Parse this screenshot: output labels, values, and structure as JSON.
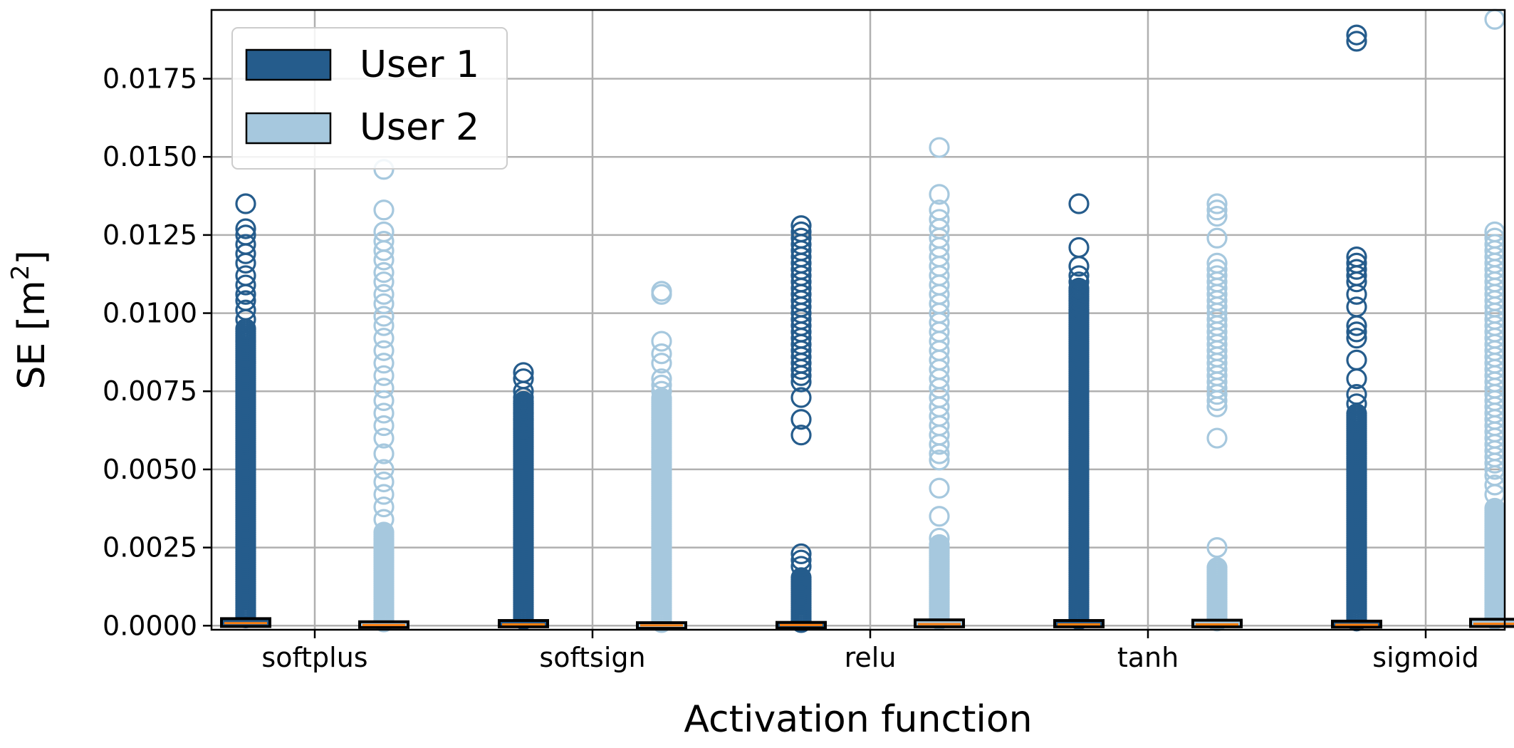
{
  "chart_data": {
    "type": "box",
    "xlabel": "Activation function",
    "ylabel": "SE [m",
    "ylabel_superscript": "2",
    "ylabel_suffix": "]",
    "categories": [
      "softplus",
      "softsign",
      "relu",
      "tanh",
      "sigmoid"
    ],
    "ylim": [
      -0.00013,
      0.0197
    ],
    "yticks": [
      0.0,
      0.0025,
      0.005,
      0.0075,
      0.01,
      0.0125,
      0.015,
      0.0175
    ],
    "ytick_labels": [
      "0.0000",
      "0.0025",
      "0.0050",
      "0.0075",
      "0.0100",
      "0.0125",
      "0.0150",
      "0.0175"
    ],
    "grid": true,
    "legend_position": "top-left",
    "colors": {
      "User 1": "#255c8c",
      "User 2": "#a6c8de",
      "median": "#ff7f0e",
      "grid": "#b0b0b0"
    },
    "series": [
      {
        "name": "User 1",
        "boxes": [
          {
            "median": 8e-05,
            "q1": 2e-05,
            "q3": 0.00018,
            "outlier_min": 0.00025,
            "dense_until": 0.0095,
            "fliers": [
              0.0135,
              0.0127,
              0.0125,
              0.0122,
              0.0119,
              0.0116,
              0.0112,
              0.0109,
              0.0106,
              0.0104,
              0.0101,
              0.0098,
              0.0095,
              0.0091
            ]
          },
          {
            "median": 4e-05,
            "q1": 1e-05,
            "q3": 0.00012,
            "outlier_min": 0.0002,
            "dense_until": 0.0072,
            "fliers": [
              0.0081,
              0.0079,
              0.0075,
              0.0073,
              0.0071,
              0.0068,
              0.0066,
              0.0063
            ]
          },
          {
            "median": 2e-05,
            "q1": 0.0,
            "q3": 6e-05,
            "outlier_min": 0.0001,
            "dense_until": 0.0016,
            "fliers": [
              0.0128,
              0.0126,
              0.0124,
              0.0122,
              0.012,
              0.0118,
              0.0116,
              0.0114,
              0.0112,
              0.011,
              0.0108,
              0.0106,
              0.0104,
              0.0102,
              0.01,
              0.0098,
              0.0096,
              0.0094,
              0.0092,
              0.009,
              0.0088,
              0.0086,
              0.0084,
              0.0082,
              0.008,
              0.0078,
              0.0073,
              0.0066,
              0.0061,
              0.0023,
              0.0021,
              0.0019
            ]
          },
          {
            "median": 4e-05,
            "q1": 1e-05,
            "q3": 0.00012,
            "outlier_min": 0.0002,
            "dense_until": 0.0108,
            "fliers": [
              0.0135,
              0.0121,
              0.0115,
              0.0112,
              0.011,
              0.0107,
              0.0104,
              0.0101
            ]
          },
          {
            "median": 3e-05,
            "q1": 0.0,
            "q3": 0.0001,
            "outlier_min": 0.00015,
            "dense_until": 0.0068,
            "fliers": [
              0.0189,
              0.0187,
              0.0118,
              0.0116,
              0.0114,
              0.0112,
              0.011,
              0.0106,
              0.0102,
              0.0096,
              0.0094,
              0.0092,
              0.0085,
              0.0079,
              0.0074,
              0.0071
            ]
          }
        ]
      },
      {
        "name": "User 2",
        "boxes": [
          {
            "median": 2e-05,
            "q1": 0.0,
            "q3": 8e-05,
            "outlier_min": 0.00012,
            "dense_until": 0.003,
            "fliers": [
              0.0146,
              0.0133,
              0.0126,
              0.0123,
              0.012,
              0.0117,
              0.0113,
              0.011,
              0.0106,
              0.0103,
              0.0099,
              0.0096,
              0.0092,
              0.0088,
              0.0084,
              0.008,
              0.0076,
              0.0072,
              0.0068,
              0.0064,
              0.006,
              0.0055,
              0.005,
              0.0046,
              0.0042,
              0.0038,
              0.0034
            ]
          },
          {
            "median": 1e-05,
            "q1": 0.0,
            "q3": 5e-05,
            "outlier_min": 0.0001,
            "dense_until": 0.0073,
            "fliers": [
              0.0107,
              0.0106,
              0.0091,
              0.0087,
              0.0084,
              0.0079,
              0.0077,
              0.0075
            ]
          },
          {
            "median": 5e-05,
            "q1": 1e-05,
            "q3": 0.00014,
            "outlier_min": 0.0002,
            "dense_until": 0.0026,
            "fliers": [
              0.0153,
              0.0138,
              0.0133,
              0.013,
              0.0127,
              0.0124,
              0.0121,
              0.0118,
              0.0115,
              0.0112,
              0.0109,
              0.0106,
              0.0103,
              0.01,
              0.0097,
              0.0094,
              0.0091,
              0.0088,
              0.0085,
              0.0082,
              0.0079,
              0.0076,
              0.0073,
              0.007,
              0.0067,
              0.0064,
              0.0061,
              0.0058,
              0.0055,
              0.0053,
              0.0044,
              0.0035,
              0.0028
            ]
          },
          {
            "median": 4e-05,
            "q1": 1e-05,
            "q3": 0.00013,
            "outlier_min": 0.00015,
            "dense_until": 0.0019,
            "fliers": [
              0.0135,
              0.0133,
              0.0131,
              0.0124,
              0.0116,
              0.0114,
              0.0112,
              0.011,
              0.0108,
              0.0106,
              0.0104,
              0.0102,
              0.01,
              0.0098,
              0.0096,
              0.0094,
              0.0092,
              0.009,
              0.0088,
              0.0086,
              0.0084,
              0.0082,
              0.008,
              0.0078,
              0.0076,
              0.0074,
              0.0072,
              0.007,
              0.006,
              0.0025
            ]
          },
          {
            "median": 6e-05,
            "q1": 2e-05,
            "q3": 0.00016,
            "outlier_min": 0.0002,
            "dense_until": 0.0038,
            "fliers": [
              0.0194,
              0.0126,
              0.0124,
              0.0122,
              0.012,
              0.0118,
              0.0116,
              0.0114,
              0.0112,
              0.011,
              0.0108,
              0.0106,
              0.0104,
              0.0102,
              0.01,
              0.0098,
              0.0096,
              0.0094,
              0.0092,
              0.009,
              0.0088,
              0.0086,
              0.0084,
              0.0082,
              0.008,
              0.0078,
              0.0076,
              0.0074,
              0.0072,
              0.007,
              0.0068,
              0.0066,
              0.0064,
              0.0062,
              0.006,
              0.0058,
              0.0056,
              0.0054,
              0.0052,
              0.005,
              0.0048,
              0.0045,
              0.0042
            ]
          }
        ]
      }
    ],
    "legend": [
      {
        "label": "User 1",
        "color": "#255c8c"
      },
      {
        "label": "User 2",
        "color": "#a6c8de"
      }
    ]
  }
}
